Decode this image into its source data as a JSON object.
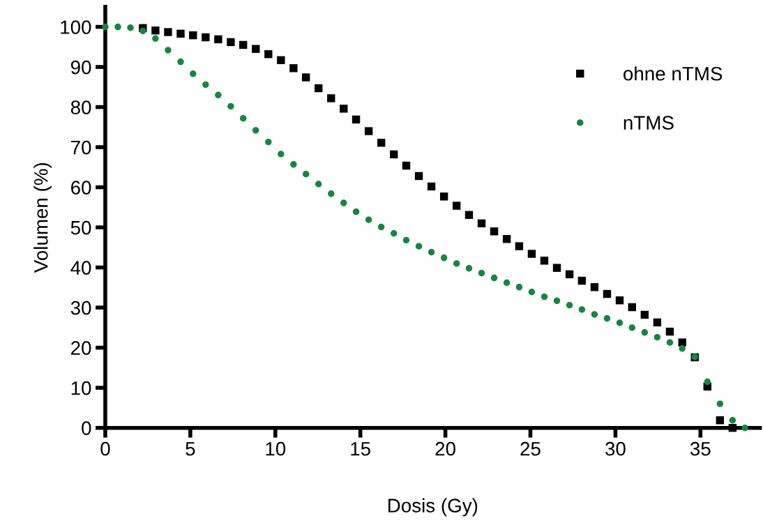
{
  "chart_data": {
    "type": "scatter",
    "xlabel": "Dosis (Gy)",
    "ylabel": "Volumen (%)",
    "xlim": [
      0,
      38.5
    ],
    "ylim": [
      0,
      105
    ],
    "xticks": [
      0,
      5,
      10,
      15,
      20,
      25,
      30,
      35
    ],
    "yticks": [
      0,
      10,
      20,
      30,
      40,
      50,
      60,
      70,
      80,
      90,
      100
    ],
    "grid": false,
    "legend": "top right",
    "series": [
      {
        "name": "ohne nTMS",
        "color": "#000000",
        "marker": "square",
        "x": [
          2.21,
          2.95,
          3.69,
          4.43,
          5.16,
          5.9,
          6.64,
          7.38,
          8.11,
          8.85,
          9.59,
          10.33,
          11.07,
          11.8,
          12.54,
          13.28,
          14.02,
          14.75,
          15.49,
          16.23,
          16.97,
          17.7,
          18.44,
          19.18,
          19.92,
          20.66,
          21.39,
          22.13,
          22.87,
          23.61,
          24.34,
          25.08,
          25.82,
          26.56,
          27.3,
          28.03,
          28.77,
          29.51,
          30.25,
          30.98,
          31.72,
          32.46,
          33.2,
          33.93,
          34.67,
          35.41,
          36.15,
          36.89
        ],
        "values": [
          99.7,
          99.1,
          98.7,
          98.3,
          97.9,
          97.4,
          96.9,
          96.2,
          95.5,
          94.5,
          93.2,
          91.7,
          89.7,
          87.4,
          84.7,
          82.2,
          79.6,
          76.9,
          74.0,
          71.1,
          68.2,
          65.4,
          62.8,
          60.2,
          57.7,
          55.4,
          53.1,
          51.0,
          49.0,
          47.1,
          45.3,
          43.4,
          41.7,
          39.9,
          38.3,
          36.7,
          35.1,
          33.4,
          31.8,
          30.1,
          28.2,
          26.3,
          24.0,
          21.3,
          17.6,
          10.3,
          1.9,
          0
        ]
      },
      {
        "name": "nTMS",
        "color": "#138642",
        "marker": "circle",
        "x": [
          0,
          0.74,
          1.48,
          2.21,
          2.95,
          3.69,
          4.43,
          5.16,
          5.9,
          6.64,
          7.38,
          8.11,
          8.85,
          9.59,
          10.33,
          11.07,
          11.8,
          12.54,
          13.28,
          14.02,
          14.75,
          15.49,
          16.23,
          16.97,
          17.7,
          18.44,
          19.18,
          19.92,
          20.66,
          21.39,
          22.13,
          22.87,
          23.61,
          24.34,
          25.08,
          25.82,
          26.56,
          27.3,
          28.03,
          28.77,
          29.51,
          30.25,
          30.98,
          31.72,
          32.46,
          33.2,
          33.93,
          34.67,
          35.41,
          36.15,
          36.89,
          37.62
        ],
        "values": [
          100,
          100,
          99.8,
          99.0,
          97.1,
          94.2,
          91.3,
          88.3,
          85.6,
          83.0,
          80.2,
          77.2,
          74.2,
          71.3,
          68.3,
          65.7,
          63.3,
          60.8,
          58.4,
          56.1,
          53.9,
          51.9,
          50.1,
          48.5,
          46.8,
          45.3,
          43.8,
          42.4,
          41.0,
          39.8,
          38.6,
          37.4,
          36.2,
          35.1,
          33.9,
          32.7,
          31.7,
          30.6,
          29.5,
          28.3,
          27.3,
          26.2,
          25.0,
          23.8,
          22.6,
          21.3,
          19.8,
          17.7,
          11.5,
          6.0,
          1.9,
          0
        ]
      }
    ]
  }
}
